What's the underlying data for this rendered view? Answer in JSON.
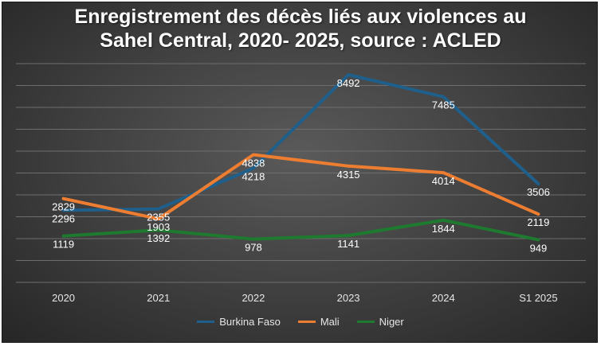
{
  "chart_data": {
    "type": "line",
    "title_line1": "Enregistrement des décès liés aux violences au",
    "title_line2": "Sahel Central, 2020- 2025, source : ACLED",
    "categories": [
      "2020",
      "2021",
      "2022",
      "2023",
      "2024",
      "S1 2025"
    ],
    "series": [
      {
        "name": "Burkina Faso",
        "color": "#1f5f8b",
        "values": [
          2296,
          2355,
          4218,
          8492,
          7485,
          3506
        ]
      },
      {
        "name": "Mali",
        "color": "#ed7d31",
        "values": [
          2829,
          1903,
          4838,
          4315,
          4014,
          2119
        ]
      },
      {
        "name": "Niger",
        "color": "#1e7a2e",
        "values": [
          1119,
          1392,
          978,
          1141,
          1844,
          949
        ]
      }
    ],
    "ylim": [
      -1000,
      9000
    ],
    "grid": true,
    "legend": "bottom"
  }
}
